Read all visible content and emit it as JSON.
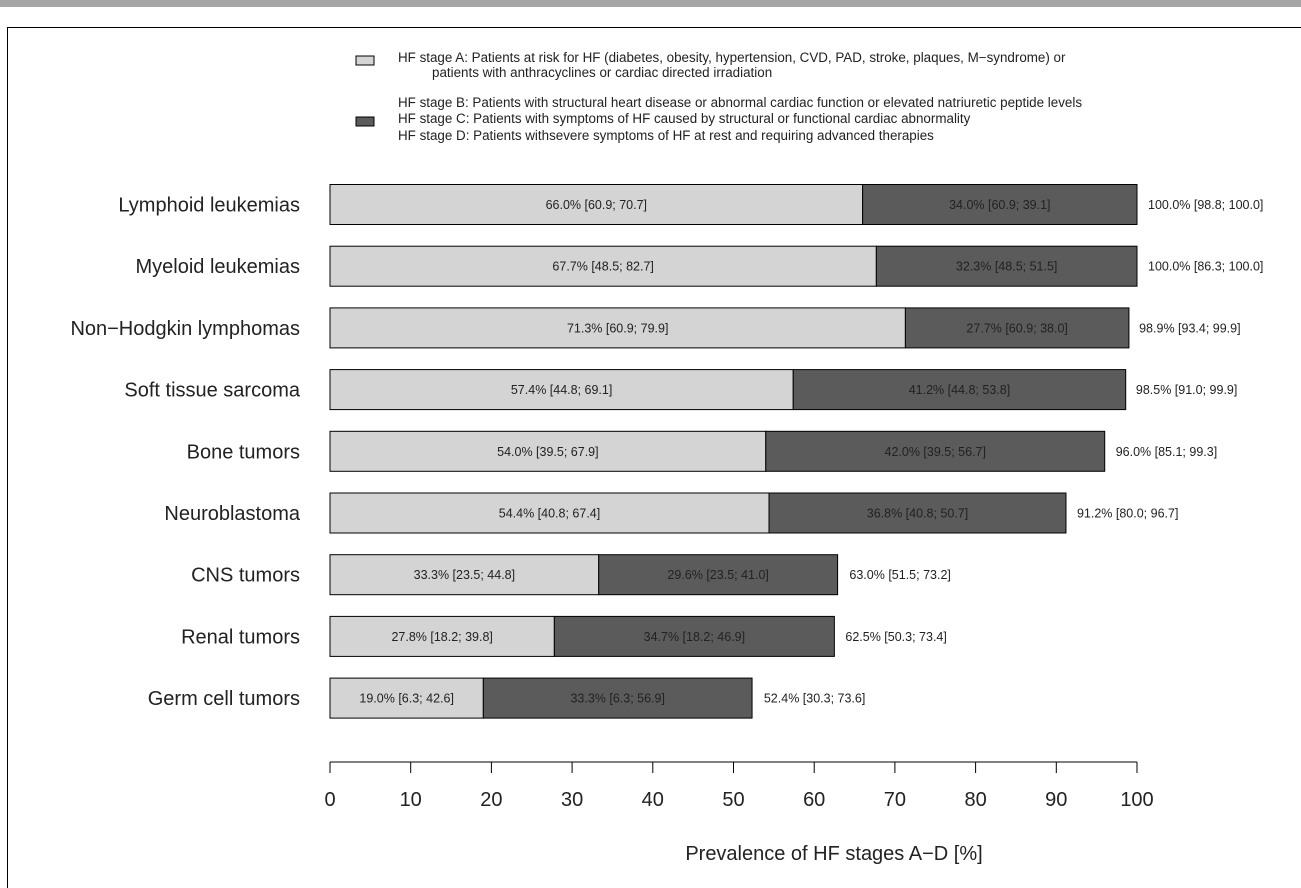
{
  "chart_data": {
    "type": "bar",
    "stacked": true,
    "orientation": "horizontal",
    "xlabel": "Prevalence of HF stages A−D [%]",
    "xlim": [
      0,
      100
    ],
    "xticks": [
      0,
      10,
      20,
      30,
      40,
      50,
      60,
      70,
      80,
      90,
      100
    ],
    "legend": {
      "placement": "top",
      "entries": [
        {
          "color": "#d4d4d4",
          "lines": [
            "HF stage A: Patients at risk for HF (diabetes, obesity, hypertension, CVD, PAD, stroke, plaques, M−syndrome) or",
            "patients with anthracyclines or cardiac directed irradiation"
          ]
        },
        {
          "color": "#5b5b5b",
          "lines": [
            "HF stage B: Patients with structural heart disease or abnormal cardiac function or elevated natriuretic peptide levels",
            "HF stage C: Patients with symptoms of HF caused by structural or functional cardiac abnormality",
            "HF stage D: Patients withsevere symptoms of HF at rest and requiring advanced therapies"
          ]
        }
      ]
    },
    "categories": [
      "Lymphoid leukemias",
      "Myeloid leukemias",
      "Non−Hodgkin lymphomas",
      "Soft tissue sarcoma",
      "Bone tumors",
      "Neuroblastoma",
      "CNS tumors",
      "Renal tumors",
      "Germ cell tumors"
    ],
    "series": [
      {
        "color": "#d4d4d4",
        "values": [
          66.0,
          67.7,
          71.3,
          57.4,
          54.0,
          54.4,
          33.3,
          27.8,
          19.0
        ],
        "labels": [
          "66.0%  [60.9; 70.7]",
          "67.7%  [48.5; 82.7]",
          "71.3%  [60.9; 79.9]",
          "57.4%  [44.8; 69.1]",
          "54.0%  [39.5; 67.9]",
          "54.4%  [40.8; 67.4]",
          "33.3%  [23.5; 44.8]",
          "27.8%  [18.2; 39.8]",
          "19.0%  [6.3; 42.6]"
        ]
      },
      {
        "color": "#5b5b5b",
        "values": [
          34.0,
          32.3,
          27.7,
          41.2,
          42.0,
          36.8,
          29.6,
          34.7,
          33.3
        ],
        "labels": [
          "34.0%  [60.9; 39.1]",
          "32.3%  [48.5; 51.5]",
          "27.7%  [60.9; 38.0]",
          "41.2%  [44.8; 53.8]",
          "42.0%  [39.5; 56.7]",
          "36.8%  [40.8; 50.7]",
          "29.6%  [23.5; 41.0]",
          "34.7%  [18.2; 46.9]",
          "33.3%  [6.3; 56.9]"
        ]
      }
    ],
    "totals": {
      "values": [
        100.0,
        100.0,
        98.9,
        98.5,
        96.0,
        91.2,
        63.0,
        62.5,
        52.4
      ],
      "labels": [
        "100.0%  [98.8; 100.0]",
        "100.0%  [86.3; 100.0]",
        "98.9%  [93.4; 99.9]",
        "98.5%  [91.0; 99.9]",
        "96.0%  [85.1; 99.3]",
        "91.2%  [80.0; 96.7]",
        "63.0%  [51.5; 73.2]",
        "62.5%  [50.3; 73.4]",
        "52.4%  [30.3; 73.6]"
      ]
    }
  }
}
